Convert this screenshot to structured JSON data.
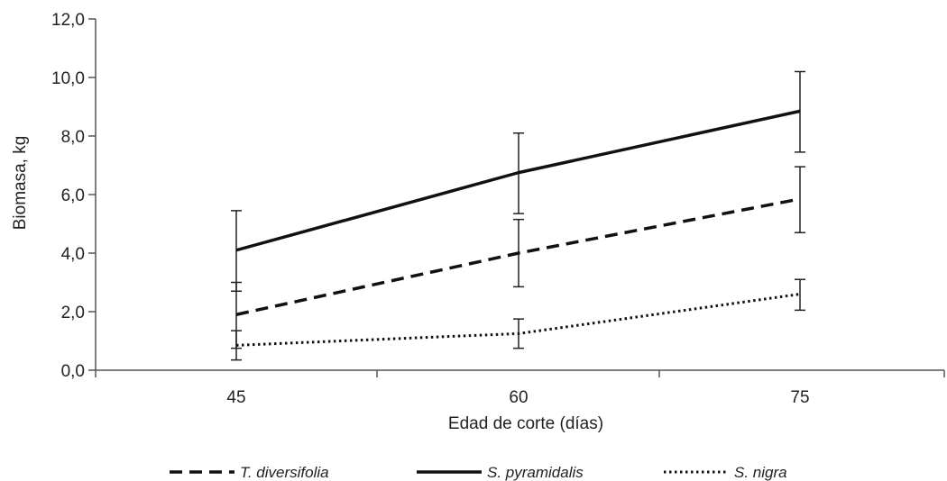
{
  "chart_data": {
    "type": "line",
    "xlabel": "Edad de corte (días)",
    "ylabel": "Biomasa, kg",
    "categories": [
      "45",
      "60",
      "75"
    ],
    "ylim": [
      0,
      12
    ],
    "yticks": [
      "0,0",
      "2,0",
      "4,0",
      "6,0",
      "8,0",
      "10,0",
      "12,0"
    ],
    "grid": false,
    "legend_position": "bottom",
    "series": [
      {
        "name": "T. diversifolia",
        "line_style": "dashed",
        "color": "#111111",
        "values": [
          1.9,
          4.0,
          5.85
        ],
        "error_low": [
          0.75,
          2.85,
          4.7
        ],
        "error_high": [
          3.0,
          5.15,
          6.95
        ]
      },
      {
        "name": "S. pyramidalis",
        "line_style": "solid",
        "color": "#111111",
        "values": [
          4.1,
          6.75,
          8.85
        ],
        "error_low": [
          2.7,
          5.35,
          7.45
        ],
        "error_high": [
          5.45,
          8.1,
          10.2
        ]
      },
      {
        "name": "S. nigra",
        "line_style": "dotted",
        "color": "#111111",
        "values": [
          0.85,
          1.25,
          2.6
        ],
        "error_low": [
          0.35,
          0.75,
          2.05
        ],
        "error_high": [
          1.35,
          1.75,
          3.1
        ]
      }
    ]
  }
}
